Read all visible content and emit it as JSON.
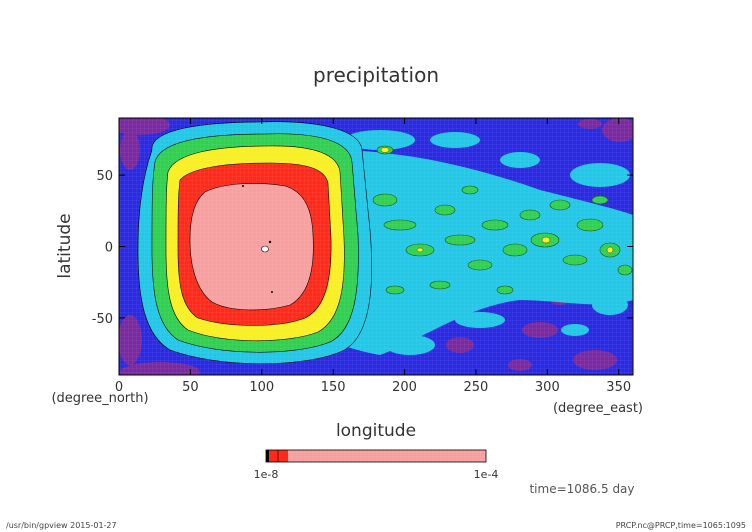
{
  "chart_data": {
    "type": "heatmap",
    "title": "precipitation",
    "xlabel": "longitude",
    "ylabel": "latitude",
    "x_unit": "(degree_east)",
    "y_unit": "(degree_north)",
    "xlim": [
      0,
      360
    ],
    "ylim": [
      -90,
      90
    ],
    "x_ticks": [
      "0",
      "50",
      "100",
      "150",
      "200",
      "250",
      "300",
      "350"
    ],
    "y_ticks": [
      "50",
      "0",
      "-50"
    ],
    "x_tick_values": [
      0,
      50,
      100,
      150,
      200,
      250,
      300,
      350
    ],
    "y_tick_values": [
      50,
      0,
      -50
    ],
    "grid": true,
    "colorbar": {
      "left_label": "1e-8",
      "right_label": "1e-4",
      "colors": [
        "#000000",
        "#ff2a1a",
        "#ff2a1a",
        "#f8a0a0"
      ]
    },
    "annotation": "time=1086.5 day",
    "colors": {
      "ocean_deep": "#2a2ae0",
      "ocean_purple": "#7a2aa0",
      "cyan": "#22c8e8",
      "green": "#30d050",
      "yellow": "#f8f020",
      "red": "#ff2a1a",
      "pink": "#f8a0a0"
    }
  },
  "footer": {
    "left": "/usr/bin/gpview  2015-01-27",
    "right": "PRCP.nc@PRCP,time=1065:1095"
  }
}
